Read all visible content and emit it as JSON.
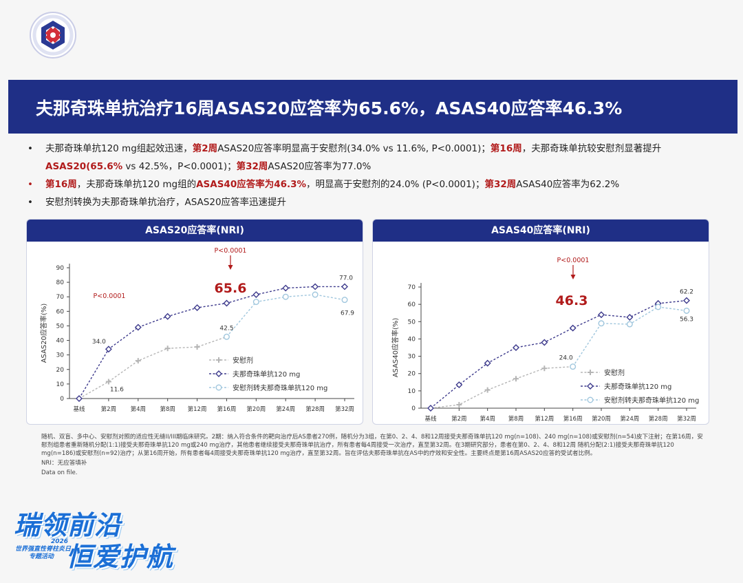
{
  "header": {
    "title": "夫那奇珠单抗治疗16周ASAS20应答率为65.6%，ASAS40应答率46.3%"
  },
  "bullets": [
    {
      "marker": "•",
      "marker_red": false,
      "segments": [
        {
          "text": "夫那奇珠单抗120 mg组起效迅速，",
          "hl": false
        },
        {
          "text": "第2周",
          "hl": true
        },
        {
          "text": "ASAS20应答率明显高于安慰剂(34.0% vs 11.6%, P<0.0001)；",
          "hl": false
        },
        {
          "text": "第16周",
          "hl": true
        },
        {
          "text": "，夫那奇珠单抗较安慰剂显著提升",
          "hl": false
        },
        {
          "text": "ASAS20(65.6%",
          "hl": true
        },
        {
          "text": " vs 42.5%，P<0.0001)；",
          "hl": false
        },
        {
          "text": "第32周",
          "hl": true
        },
        {
          "text": "ASAS20应答率为77.0%",
          "hl": false
        }
      ]
    },
    {
      "marker": "•",
      "marker_red": true,
      "segments": [
        {
          "text": "第16周",
          "hl": true
        },
        {
          "text": "，夫那奇珠单抗120 mg组的",
          "hl": false
        },
        {
          "text": "ASAS40应答率为46.3%",
          "hl": true
        },
        {
          "text": "，明显高于安慰剂的24.0% (P<0.0001)；",
          "hl": false
        },
        {
          "text": "第32周",
          "hl": true
        },
        {
          "text": "ASAS40应答率为62.2%",
          "hl": false
        }
      ]
    },
    {
      "marker": "•",
      "marker_red": false,
      "segments": [
        {
          "text": "安慰剂转换为夫那奇珠单抗治疗，ASAS20应答率迅速提升",
          "hl": false
        }
      ]
    }
  ],
  "chart_data": [
    {
      "type": "line",
      "title": "ASAS20应答率(NRI)",
      "ylabel": "ASAS20应答率(%)",
      "xlabel": "",
      "ylim": [
        0,
        90
      ],
      "yticks": [
        0,
        10,
        20,
        30,
        40,
        50,
        60,
        70,
        80,
        90
      ],
      "categories": [
        "基线",
        "第2周",
        "第4周",
        "第8周",
        "第12周",
        "第16周",
        "第20周",
        "第24周",
        "第28周",
        "第32周"
      ],
      "series": [
        {
          "name": "安慰剂",
          "color": "#b5b5b5",
          "marker": "plus",
          "values": [
            0,
            11.6,
            26,
            34.5,
            35.5,
            42.5,
            null,
            null,
            null,
            null
          ]
        },
        {
          "name": "夫那奇珠单抗120 mg",
          "color": "#3d3a8c",
          "marker": "diamond",
          "values": [
            0,
            34.0,
            49,
            56.5,
            62.5,
            65.6,
            71.5,
            76,
            77,
            77.0
          ]
        },
        {
          "name": "安慰剂转夫那奇珠单抗120 mg",
          "color": "#9fc6dd",
          "marker": "circle",
          "values": [
            null,
            null,
            null,
            null,
            null,
            42.5,
            66.5,
            70,
            71.5,
            67.9
          ]
        }
      ],
      "data_labels": [
        {
          "series": 1,
          "index": 1,
          "text": "34.0"
        },
        {
          "series": 0,
          "index": 1,
          "text": "11.6"
        },
        {
          "series": 0,
          "index": 5,
          "text": "42.5"
        },
        {
          "series": 1,
          "index": 9,
          "text": "77.0"
        },
        {
          "series": 2,
          "index": 9,
          "text": "67.9"
        }
      ],
      "annotations": [
        {
          "text": "P<0.0001",
          "at": "week2"
        },
        {
          "text": "P<0.0001",
          "at": "week16"
        },
        {
          "text": "65.6",
          "at": "week16",
          "big": true
        }
      ],
      "legend_position": "bottom-right",
      "grid": false
    },
    {
      "type": "line",
      "title": "ASAS40应答率(NRI)",
      "ylabel": "ASAS40应答率(%)",
      "xlabel": "",
      "ylim": [
        0,
        70
      ],
      "yticks": [
        0,
        10,
        20,
        30,
        40,
        50,
        60,
        70
      ],
      "categories": [
        "基线",
        "第2周",
        "第4周",
        "第8周",
        "第12周",
        "第16周",
        "第20周",
        "第24周",
        "第28周",
        "第32周"
      ],
      "series": [
        {
          "name": "安慰剂",
          "color": "#b5b5b5",
          "marker": "plus",
          "values": [
            0,
            2,
            10.5,
            17,
            23,
            24.0,
            null,
            null,
            null,
            null
          ]
        },
        {
          "name": "夫那奇珠单抗120 mg",
          "color": "#3d3a8c",
          "marker": "diamond",
          "values": [
            0,
            13.5,
            26,
            35,
            38,
            46.3,
            54,
            52.5,
            60.5,
            62.2
          ]
        },
        {
          "name": "安慰剂转夫那奇珠单抗120 mg",
          "color": "#9fc6dd",
          "marker": "circle",
          "values": [
            null,
            null,
            null,
            null,
            null,
            24.0,
            49,
            48.5,
            58.5,
            56.3
          ]
        }
      ],
      "data_labels": [
        {
          "series": 0,
          "index": 5,
          "text": "24.0"
        },
        {
          "series": 1,
          "index": 9,
          "text": "62.2"
        },
        {
          "series": 2,
          "index": 9,
          "text": "56.3"
        }
      ],
      "annotations": [
        {
          "text": "P<0.0001",
          "at": "week16"
        },
        {
          "text": "46.3",
          "at": "week16",
          "big": true
        }
      ],
      "legend_position": "bottom-right",
      "grid": false
    }
  ],
  "footnote": {
    "line1": "随机、双盲、多中心、安慰剂对照的适应性无缝II/III期临床研究。2期：纳入符合条件的靶向治疗后AS患者270例，随机分为3组，在第0、2、4、8和12周接受夫那奇珠单抗120 mg(n=108)、240 mg(n=108)或安慰剂(n=54)皮下注射；在第16周，安慰剂组患者重新随机分配(1:1)接受夫那奇珠单抗120 mg或240 mg治疗，其他患者继续接受夫那奇珠单抗治疗，所有患者每4周接受一次治疗，直至第32周。在3期研究部分，患者在第0、2、4、8和12周 随机分配(2:1)接受夫那奇珠单抗120 mg(n=186)或安慰剂(n=92)治疗；从第16周开始，所有患者每4周接受夫那奇珠单抗120 mg治疗，直至第32周。旨在评估夫那奇珠单抗在AS中的疗效和安全性。主要终点是第16周ASAS20应答的受试者比例。",
    "line2": "NRI：无应答填补",
    "line3": "Data on file."
  },
  "slogan": {
    "line1": "瑞领前沿",
    "line2": "恒爱护航",
    "small1": "2026",
    "small2": "世界强直性脊柱炎日",
    "small3": "专题活动"
  },
  "colors": {
    "header_bg": "#1f2f86",
    "highlight": "#b11b1b",
    "series_placebo": "#b5b5b5",
    "series_drug": "#3d3a8c",
    "series_switch": "#9fc6dd"
  }
}
